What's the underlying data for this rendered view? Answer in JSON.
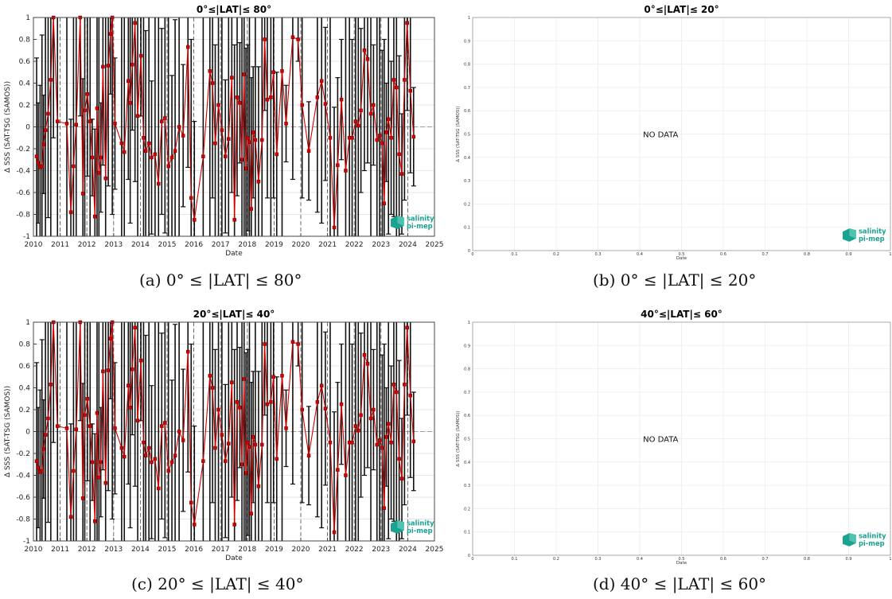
{
  "chart_data": [
    {
      "type": "scatter",
      "id": "a",
      "title": "0°≤|LAT|≤ 80°",
      "xlabel": "Date",
      "ylabel": "Δ SSS (SAT-TSG (SAMOS))",
      "xlim": [
        2010,
        2025
      ],
      "ylim": [
        -1,
        1
      ],
      "xticks": [
        "2010",
        "2011",
        "2012",
        "2013",
        "2014",
        "2015",
        "2016",
        "2017",
        "2018",
        "2019",
        "2020",
        "2021",
        "2022",
        "2023",
        "2024",
        "2025"
      ],
      "yticks": [
        "-1",
        "-0.8",
        "-0.6",
        "-0.4",
        "-0.2",
        "0",
        "0.2",
        "0.4",
        "0.6",
        "0.8",
        "1"
      ],
      "grid": true,
      "series": [
        {
          "x": [
            2010.12,
            2010.18,
            2010.25,
            2010.32,
            2010.38,
            2010.45,
            2010.55,
            2010.65,
            2010.75,
            2010.9,
            2011.25,
            2011.4,
            2011.5,
            2011.6,
            2011.75,
            2011.85,
            2011.92,
            2012.02,
            2012.12,
            2012.2,
            2012.3,
            2012.38,
            2012.45,
            2012.52,
            2012.6,
            2012.7,
            2012.8,
            2012.88,
            2012.95,
            2013.05,
            2013.3,
            2013.4,
            2013.55,
            2013.62,
            2013.7,
            2013.8,
            2013.9,
            2014.02,
            2014.12,
            2014.2,
            2014.32,
            2014.42,
            2014.55,
            2014.68,
            2014.8,
            2014.92,
            2015.05,
            2015.18,
            2015.3,
            2015.45,
            2015.6,
            2015.78,
            2015.9,
            2016.02,
            2016.35,
            2016.6,
            2016.7,
            2016.8,
            2016.92,
            2017.05,
            2017.18,
            2017.3,
            2017.42,
            2017.52,
            2017.62,
            2017.72,
            2017.8,
            2017.88,
            2017.95,
            2018.02,
            2018.08,
            2018.15,
            2018.22,
            2018.3,
            2018.42,
            2018.55,
            2018.65,
            2018.75,
            2018.88,
            2018.98,
            2019.1,
            2019.3,
            2019.45,
            2019.7,
            2019.9,
            2020.05,
            2020.3,
            2020.62,
            2020.78,
            2020.92,
            2021.1,
            2021.25,
            2021.38,
            2021.52,
            2021.68,
            2021.82,
            2021.92,
            2022.05,
            2022.15,
            2022.25,
            2022.38,
            2022.5,
            2022.62,
            2022.72,
            2022.85,
            2022.95,
            2023.05,
            2023.12,
            2023.2,
            2023.28,
            2023.38,
            2023.48,
            2023.58,
            2023.68,
            2023.78,
            2023.88,
            2023.98,
            2024.1,
            2024.22
          ],
          "y": [
            -0.27,
            -0.33,
            -0.37,
            -0.36,
            -0.16,
            -0.03,
            0.12,
            0.43,
            1.0,
            0.05,
            0.03,
            -0.78,
            -0.36,
            0.02,
            1.0,
            -0.61,
            0.15,
            0.3,
            0.05,
            -0.28,
            -0.82,
            0.17,
            -0.42,
            -0.28,
            0.55,
            -0.47,
            0.56,
            0.85,
            1.0,
            0.03,
            -0.15,
            -0.23,
            0.42,
            0.22,
            0.57,
            0.95,
            0.1,
            0.65,
            -0.1,
            -0.22,
            -0.15,
            -0.28,
            -0.25,
            -0.52,
            0.05,
            0.08,
            -0.36,
            -0.28,
            -0.22,
            0.0,
            -0.08,
            0.73,
            -0.65,
            -0.85,
            -0.27,
            0.51,
            0.4,
            -0.15,
            0.2,
            -0.03,
            -0.27,
            -0.11,
            0.45,
            -0.85,
            0.27,
            0.22,
            -0.3,
            0.48,
            -0.38,
            -0.1,
            -0.14,
            -0.75,
            -0.05,
            -0.12,
            -0.5,
            -0.12,
            0.8,
            0.25,
            0.27,
            0.5,
            -0.25,
            0.51,
            0.03,
            0.82,
            0.8,
            0.2,
            -0.22,
            0.27,
            0.42,
            0.21,
            -0.1,
            -0.92,
            -0.35,
            0.25,
            -0.4,
            -0.1,
            -0.1,
            0.05,
            0.01,
            0.15,
            0.7,
            0.62,
            0.12,
            0.2,
            -0.12,
            -0.08,
            -0.15,
            -0.7,
            -0.05,
            0.07,
            -0.1,
            0.43,
            0.36,
            -0.25,
            -0.43,
            0.43,
            0.95,
            0.33,
            -0.09
          ],
          "err": [
            0.9,
            0.55,
            0.75,
            1.2,
            0.45,
            1.4,
            0.95,
            1.7,
            1.1,
            1.6,
            1.2,
            0.85,
            1.5,
            1.3,
            0.9,
            1.05,
            1.9,
            0.75,
            1.25,
            0.35,
            0.8,
            1.6,
            1.45,
            0.5,
            0.9,
            1.75,
            1.1,
            0.55,
            1.8,
            0.6,
            1.5,
            1.3,
            0.9,
            1.1,
            0.6,
            1.45,
            1.9,
            0.55,
            1.25,
            1.1,
            1.75,
            0.7,
            1.3,
            1.6,
            0.85,
            1.05,
            1.55,
            0.75,
            1.2,
            1.8,
            0.65,
            1.1,
            1.45,
            0.9,
            1.3,
            1.6,
            1.05,
            0.9,
            1.5,
            1.25,
            0.7,
            1.85,
            1.05,
            1.6,
            0.9,
            0.55,
            1.3,
            1.75,
            1.1,
            0.85,
            1.45,
            1.2,
            0.6,
            1.55,
            1.05,
            1.25,
            0.65,
            0.9,
            1.4,
            1.15,
            0.75,
            1.6,
            0.35,
            1.3,
            0.2,
            0.85,
            0.45,
            1.05,
            1.3,
            0.7,
            1.45,
            1.1,
            0.8,
            0.55,
            1.7,
            1.35,
            0.9,
            1.05,
            1.5,
            0.75,
            1.1,
            0.95,
            1.4,
            0.55,
            1.3,
            1.2,
            0.85,
            1.5,
            0.45,
            1.05,
            0.7,
            1.25,
            1.6,
            0.9,
            0.55,
            1.1,
            0.8,
            0.75,
            0.45
          ]
        }
      ]
    },
    {
      "type": "scatter",
      "id": "b",
      "title": "0°≤|LAT|≤ 20°",
      "xlabel": "Date",
      "ylabel": "Δ SSS (SAT-TSG (SAMOS))",
      "xlim": [
        0,
        1
      ],
      "ylim": [
        0,
        1
      ],
      "xticks": [
        "0",
        "0.1",
        "0.2",
        "0.3",
        "0.4",
        "0.5",
        "0.6",
        "0.7",
        "0.8",
        "0.9",
        "1"
      ],
      "yticks": [
        "0",
        "0.1",
        "0.2",
        "0.3",
        "0.4",
        "0.5",
        "0.6",
        "0.7",
        "0.8",
        "0.9",
        "1"
      ],
      "grid": true,
      "annotation": "NO DATA",
      "series": []
    },
    {
      "type": "scatter",
      "id": "c",
      "title": "20°≤|LAT|≤ 40°",
      "xlabel": "Date",
      "ylabel": "Δ SSS (SAT-TSG (SAMOS))",
      "xlim": [
        2010,
        2025
      ],
      "ylim": [
        -1,
        1
      ],
      "xticks": [
        "2010",
        "2011",
        "2012",
        "2013",
        "2014",
        "2015",
        "2016",
        "2017",
        "2018",
        "2019",
        "2020",
        "2021",
        "2022",
        "2023",
        "2024",
        "2025"
      ],
      "yticks": [
        "-1",
        "-0.8",
        "-0.6",
        "-0.4",
        "-0.2",
        "0",
        "0.2",
        "0.4",
        "0.6",
        "0.8",
        "1"
      ],
      "grid": true,
      "series": [
        {
          "x": [
            2010.12,
            2010.18,
            2010.25,
            2010.32,
            2010.38,
            2010.45,
            2010.55,
            2010.65,
            2010.75,
            2010.9,
            2011.25,
            2011.4,
            2011.5,
            2011.6,
            2011.75,
            2011.85,
            2011.92,
            2012.02,
            2012.12,
            2012.2,
            2012.3,
            2012.38,
            2012.45,
            2012.52,
            2012.6,
            2012.7,
            2012.8,
            2012.88,
            2012.95,
            2013.05,
            2013.3,
            2013.4,
            2013.55,
            2013.62,
            2013.7,
            2013.8,
            2013.9,
            2014.02,
            2014.12,
            2014.2,
            2014.32,
            2014.42,
            2014.55,
            2014.68,
            2014.8,
            2014.92,
            2015.05,
            2015.18,
            2015.3,
            2015.45,
            2015.6,
            2015.78,
            2015.9,
            2016.02,
            2016.35,
            2016.6,
            2016.7,
            2016.8,
            2016.92,
            2017.05,
            2017.18,
            2017.3,
            2017.42,
            2017.52,
            2017.62,
            2017.72,
            2017.8,
            2017.88,
            2017.95,
            2018.02,
            2018.08,
            2018.15,
            2018.22,
            2018.3,
            2018.42,
            2018.55,
            2018.65,
            2018.75,
            2018.88,
            2018.98,
            2019.1,
            2019.3,
            2019.45,
            2019.7,
            2019.9,
            2020.05,
            2020.3,
            2020.62,
            2020.78,
            2020.92,
            2021.1,
            2021.25,
            2021.38,
            2021.52,
            2021.68,
            2021.82,
            2021.92,
            2022.05,
            2022.15,
            2022.25,
            2022.38,
            2022.5,
            2022.62,
            2022.72,
            2022.85,
            2022.95,
            2023.05,
            2023.12,
            2023.2,
            2023.28,
            2023.38,
            2023.48,
            2023.58,
            2023.68,
            2023.78,
            2023.88,
            2023.98,
            2024.1,
            2024.22
          ],
          "y": [
            -0.27,
            -0.33,
            -0.37,
            -0.36,
            -0.16,
            -0.03,
            0.12,
            0.43,
            1.0,
            0.05,
            0.03,
            -0.78,
            -0.36,
            0.02,
            1.0,
            -0.61,
            0.15,
            0.3,
            0.05,
            -0.28,
            -0.82,
            0.17,
            -0.42,
            -0.28,
            0.55,
            -0.47,
            0.56,
            0.85,
            1.0,
            0.03,
            -0.15,
            -0.23,
            0.42,
            0.22,
            0.57,
            0.95,
            0.1,
            0.65,
            -0.1,
            -0.22,
            -0.15,
            -0.28,
            -0.25,
            -0.52,
            0.05,
            0.08,
            -0.36,
            -0.28,
            -0.22,
            0.0,
            -0.08,
            0.73,
            -0.65,
            -0.85,
            -0.27,
            0.51,
            0.4,
            -0.15,
            0.2,
            -0.03,
            -0.27,
            -0.11,
            0.45,
            -0.85,
            0.27,
            0.22,
            -0.3,
            0.48,
            -0.38,
            -0.1,
            -0.14,
            -0.75,
            -0.05,
            -0.12,
            -0.5,
            -0.12,
            0.8,
            0.25,
            0.27,
            0.5,
            -0.25,
            0.51,
            0.03,
            0.82,
            0.8,
            0.2,
            -0.22,
            0.27,
            0.42,
            0.21,
            -0.1,
            -0.92,
            -0.35,
            0.25,
            -0.4,
            -0.1,
            -0.1,
            0.05,
            0.01,
            0.15,
            0.7,
            0.62,
            0.12,
            0.2,
            -0.12,
            -0.08,
            -0.15,
            -0.7,
            -0.05,
            0.07,
            -0.1,
            0.43,
            0.36,
            -0.25,
            -0.43,
            0.43,
            0.95,
            0.33,
            -0.09
          ],
          "err": [
            0.9,
            0.55,
            0.75,
            1.2,
            0.45,
            1.4,
            0.95,
            1.7,
            1.1,
            1.6,
            1.2,
            0.85,
            1.5,
            1.3,
            0.9,
            1.05,
            1.9,
            0.75,
            1.25,
            0.35,
            0.8,
            1.6,
            1.45,
            0.5,
            0.9,
            1.75,
            1.1,
            0.55,
            1.8,
            0.6,
            1.5,
            1.3,
            0.9,
            1.1,
            0.6,
            1.45,
            1.9,
            0.55,
            1.25,
            1.1,
            1.75,
            0.7,
            1.3,
            1.6,
            0.85,
            1.05,
            1.55,
            0.75,
            1.2,
            1.8,
            0.65,
            1.1,
            1.45,
            0.9,
            1.3,
            1.6,
            1.05,
            0.9,
            1.5,
            1.25,
            0.7,
            1.85,
            1.05,
            1.6,
            0.9,
            0.55,
            1.3,
            1.75,
            1.1,
            0.85,
            1.45,
            1.2,
            0.6,
            1.55,
            1.05,
            1.25,
            0.65,
            0.9,
            1.4,
            1.15,
            0.75,
            1.6,
            0.35,
            1.3,
            0.2,
            0.85,
            0.45,
            1.05,
            1.3,
            0.7,
            1.45,
            1.1,
            0.8,
            0.55,
            1.7,
            1.35,
            0.9,
            1.05,
            1.5,
            0.75,
            1.1,
            0.95,
            1.4,
            0.55,
            1.3,
            1.2,
            0.85,
            1.5,
            0.45,
            1.05,
            0.7,
            1.25,
            1.6,
            0.9,
            0.55,
            1.1,
            0.8,
            0.75,
            0.45
          ]
        }
      ]
    },
    {
      "type": "scatter",
      "id": "d",
      "title": "40°≤|LAT|≤ 60°",
      "xlabel": "Date",
      "ylabel": "Δ SSS (SAT-TSG (SAMOS))",
      "xlim": [
        0,
        1
      ],
      "ylim": [
        0,
        1
      ],
      "xticks": [
        "0",
        "0.1",
        "0.2",
        "0.3",
        "0.4",
        "0.5",
        "0.6",
        "0.7",
        "0.8",
        "0.9",
        "1"
      ],
      "yticks": [
        "0",
        "0.1",
        "0.2",
        "0.3",
        "0.4",
        "0.5",
        "0.6",
        "0.7",
        "0.8",
        "0.9",
        "1"
      ],
      "grid": true,
      "annotation": "NO DATA",
      "series": []
    }
  ],
  "captions": {
    "a": "(a) 0° ≤ |LAT| ≤ 80°",
    "b": "(b) 0° ≤ |LAT| ≤ 20°",
    "c": "(c) 20° ≤ |LAT| ≤ 40°",
    "d": "(d) 40° ≤ |LAT| ≤ 60°"
  },
  "logo": {
    "line1": "salinity",
    "line2": "pi-mep",
    "color": "#1aa391"
  },
  "colors": {
    "data": "#d40000",
    "error_bar": "#111111",
    "grid": "#e6e6e6",
    "dashed": "#555555",
    "zero": "#888888"
  }
}
